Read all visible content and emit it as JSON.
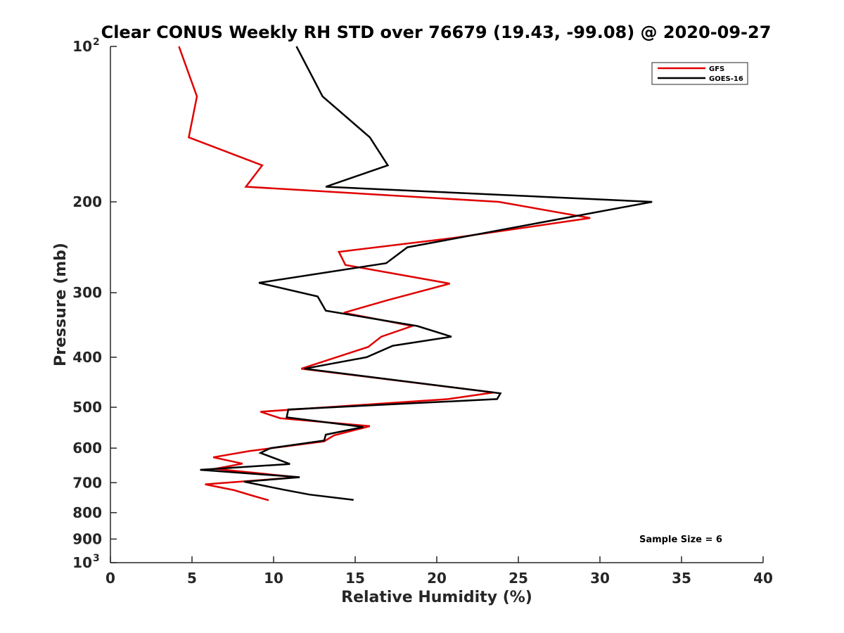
{
  "chart_data": {
    "type": "line",
    "title": "Clear CONUS Weekly RH STD over 76679 (19.43, -99.08) @ 2020-09-27",
    "xlabel": "Relative Humidity (%)",
    "ylabel": "Pressure (mb)",
    "xlim": [
      0,
      40
    ],
    "ylim": [
      100,
      1000
    ],
    "y_scale": "log",
    "y_reversed": true,
    "grid": false,
    "legend_position": "top-right",
    "x_ticks": [
      0,
      5,
      10,
      15,
      20,
      25,
      30,
      35,
      40
    ],
    "x_tick_labels": [
      "0",
      "5",
      "10",
      "15",
      "20",
      "25",
      "30",
      "35",
      "40"
    ],
    "y_ticks": [
      100,
      200,
      300,
      400,
      500,
      600,
      700,
      800,
      900,
      1000
    ],
    "y_tick_labels": [
      {
        "base": "10",
        "exp": "2"
      },
      {
        "base": "200",
        "exp": ""
      },
      {
        "base": "300",
        "exp": ""
      },
      {
        "base": "400",
        "exp": ""
      },
      {
        "base": "500",
        "exp": ""
      },
      {
        "base": "600",
        "exp": ""
      },
      {
        "base": "700",
        "exp": ""
      },
      {
        "base": "800",
        "exp": ""
      },
      {
        "base": "900",
        "exp": ""
      },
      {
        "base": "10",
        "exp": "3"
      }
    ],
    "annotation": "Sample Size = 6",
    "series": [
      {
        "name": "GFS",
        "color": "#e00000",
        "points": [
          [
            4.2,
            100
          ],
          [
            5.3,
            125
          ],
          [
            4.8,
            150
          ],
          [
            9.3,
            170
          ],
          [
            8.3,
            187
          ],
          [
            23.8,
            200
          ],
          [
            29.4,
            215
          ],
          [
            21.0,
            235
          ],
          [
            14.0,
            250
          ],
          [
            14.4,
            265
          ],
          [
            20.8,
            288
          ],
          [
            17.0,
            310
          ],
          [
            14.3,
            328
          ],
          [
            18.5,
            348
          ],
          [
            16.6,
            365
          ],
          [
            15.8,
            382
          ],
          [
            11.7,
            421
          ],
          [
            23.5,
            468
          ],
          [
            20.7,
            482
          ],
          [
            9.2,
            510
          ],
          [
            10.4,
            525
          ],
          [
            15.9,
            544
          ],
          [
            13.7,
            567
          ],
          [
            13.1,
            582
          ],
          [
            8.5,
            608
          ],
          [
            6.3,
            625
          ],
          [
            8.1,
            643
          ],
          [
            6.4,
            658
          ],
          [
            11.5,
            683
          ],
          [
            5.8,
            705
          ],
          [
            7.6,
            724
          ],
          [
            8.6,
            740
          ],
          [
            9.7,
            757
          ]
        ]
      },
      {
        "name": "GOES-16",
        "color": "#000000",
        "points": [
          [
            11.4,
            100
          ],
          [
            13.0,
            125
          ],
          [
            15.9,
            150
          ],
          [
            17.0,
            170
          ],
          [
            13.2,
            187
          ],
          [
            33.2,
            200
          ],
          [
            18.2,
            245
          ],
          [
            16.9,
            263
          ],
          [
            9.1,
            287
          ],
          [
            12.7,
            305
          ],
          [
            13.2,
            325
          ],
          [
            18.8,
            348
          ],
          [
            20.9,
            365
          ],
          [
            17.3,
            380
          ],
          [
            15.7,
            400
          ],
          [
            11.9,
            421
          ],
          [
            23.9,
            470
          ],
          [
            23.7,
            482
          ],
          [
            10.9,
            505
          ],
          [
            10.8,
            523
          ],
          [
            15.5,
            546
          ],
          [
            13.2,
            565
          ],
          [
            13.1,
            580
          ],
          [
            9.8,
            600
          ],
          [
            9.2,
            613
          ],
          [
            11.0,
            644
          ],
          [
            5.5,
            661
          ],
          [
            11.6,
            683
          ],
          [
            8.2,
            697
          ],
          [
            10.6,
            722
          ],
          [
            12.2,
            738
          ],
          [
            14.9,
            756
          ]
        ]
      }
    ]
  }
}
